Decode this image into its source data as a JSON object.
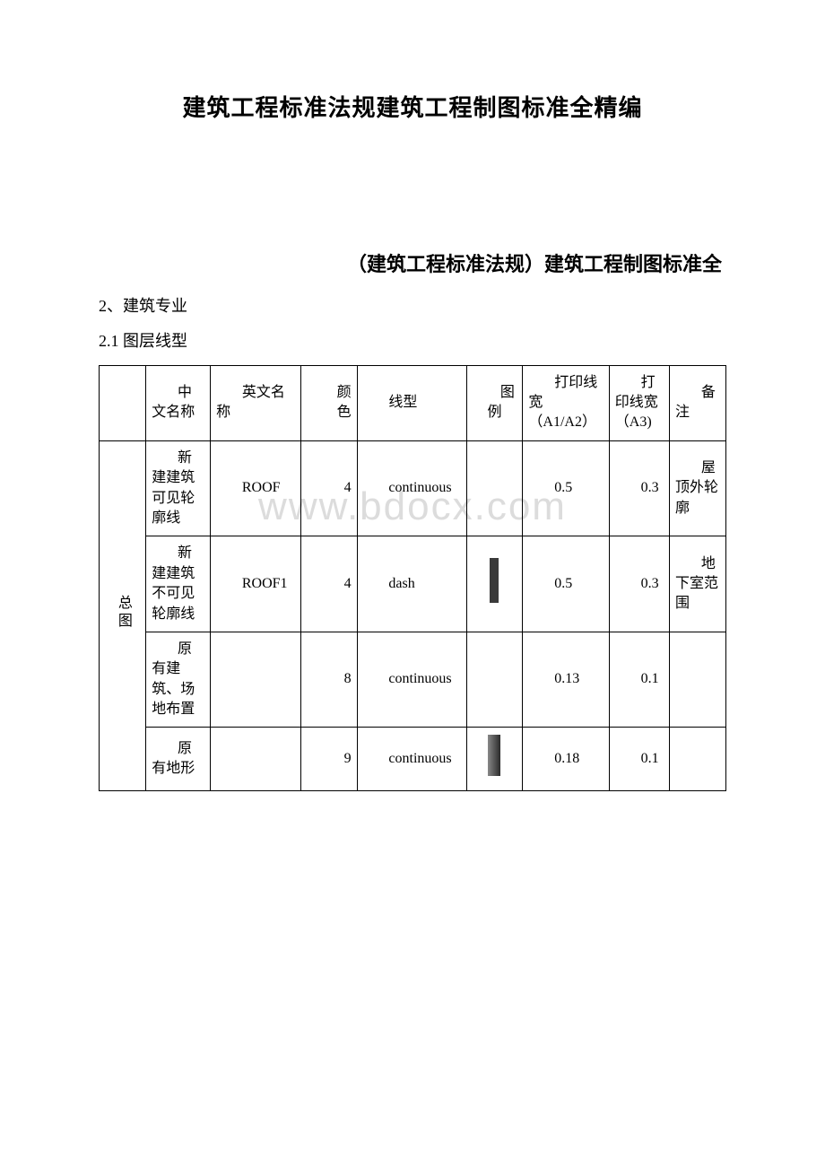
{
  "title": {
    "main": "建筑工程标准法规建筑工程制图标准全精编",
    "sub": "（建筑工程标准法规）建筑工程制图标准全"
  },
  "sections": {
    "s2": "2、建筑专业",
    "s2_1": "2.1 图层线型"
  },
  "watermark": "www.bdocx.com",
  "table": {
    "headers": {
      "cn_name": "中文名称",
      "en_name": "英文名称",
      "color": "颜色",
      "linetype": "线型",
      "example": "图例",
      "width_a1a2": "打印线宽（A1/A2）",
      "width_a3": "打印线宽（A3)",
      "note": "备注"
    },
    "category": "总图",
    "rows": [
      {
        "cn_name": "新建建筑可见轮廓线",
        "en_name": "ROOF",
        "color": "4",
        "linetype": "continuous",
        "example_type": "none",
        "width_a1a2": "0.5",
        "width_a3": "0.3",
        "note": "屋顶外轮廓"
      },
      {
        "cn_name": "新建建筑不可见轮廓线",
        "en_name": "ROOF1",
        "color": "4",
        "linetype": "dash",
        "example_type": "solid",
        "width_a1a2": "0.5",
        "width_a3": "0.3",
        "note": "地下室范围"
      },
      {
        "cn_name": "原有建筑、场地布置",
        "en_name": "",
        "color": "8",
        "linetype": "continuous",
        "example_type": "none",
        "width_a1a2": "0.13",
        "width_a3": "0.1",
        "note": ""
      },
      {
        "cn_name": "原有地形",
        "en_name": "",
        "color": "9",
        "linetype": "continuous",
        "example_type": "gradient",
        "width_a1a2": "0.18",
        "width_a3": "0.1",
        "note": ""
      }
    ]
  },
  "styling": {
    "text_color": "#000000",
    "border_color": "#000000",
    "background_color": "#ffffff",
    "watermark_color": "#dcdcdc",
    "title_fontsize": 26,
    "sub_title_fontsize": 22,
    "body_fontsize": 18,
    "table_fontsize": 16,
    "watermark_fontsize": 44
  }
}
